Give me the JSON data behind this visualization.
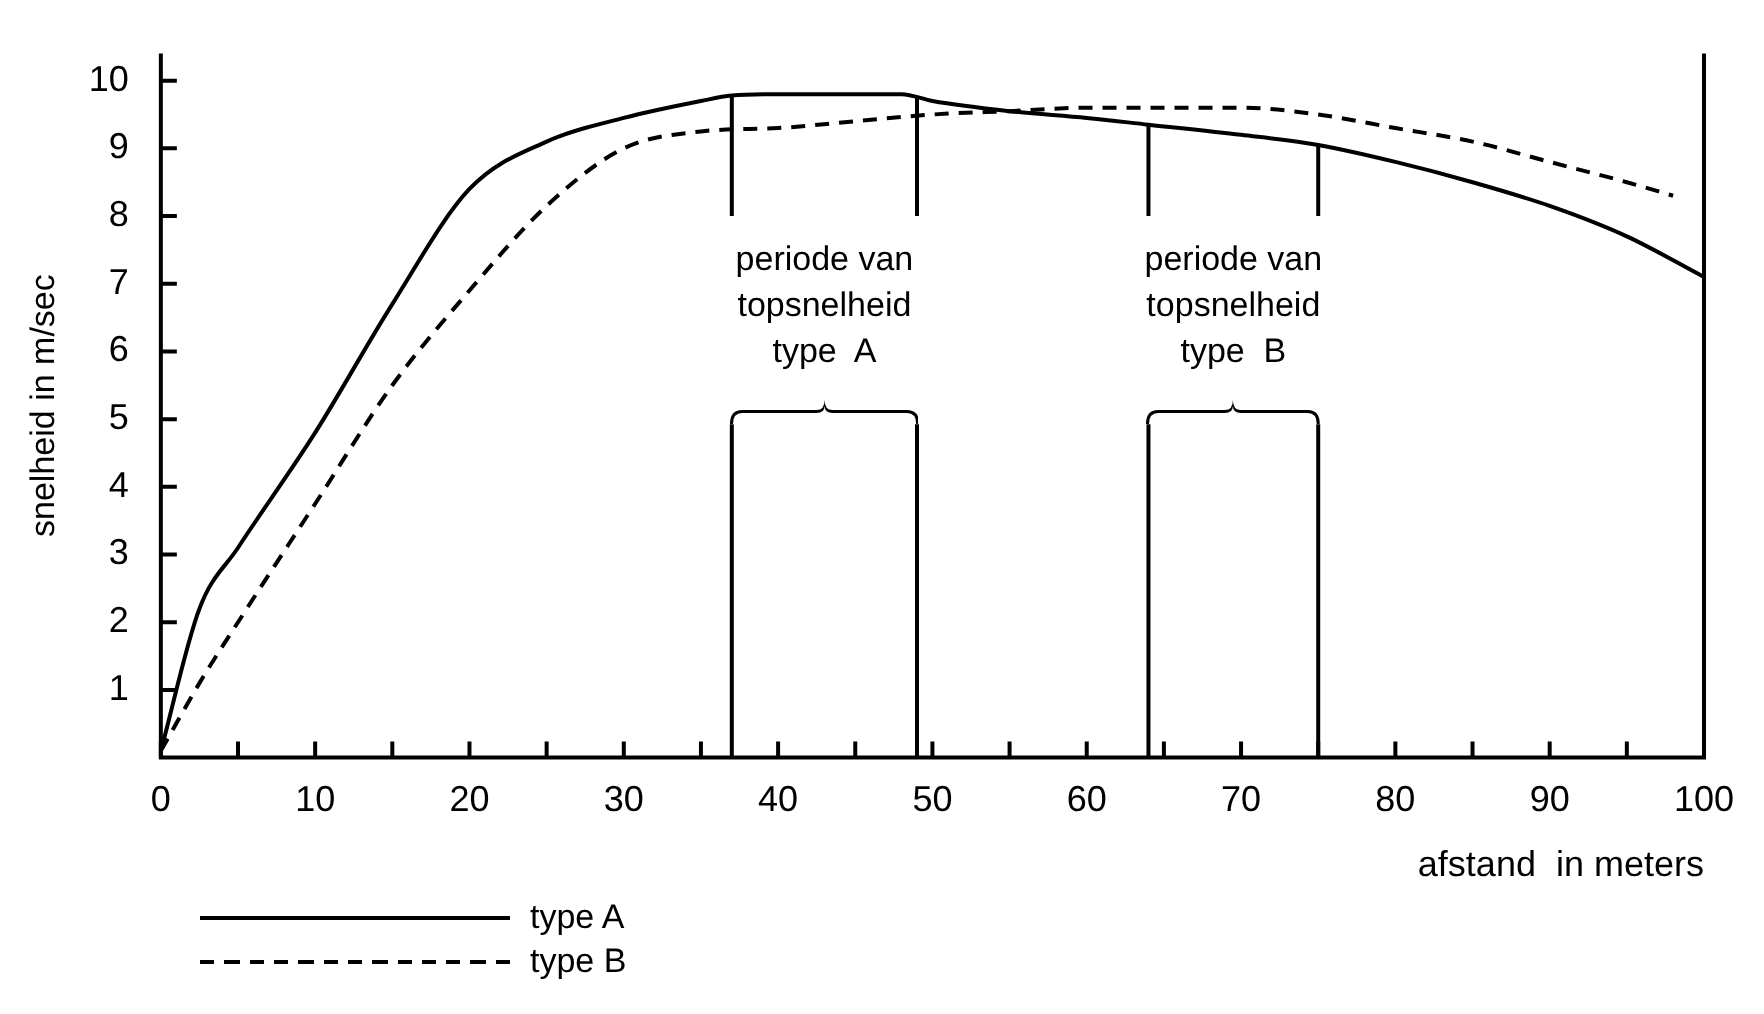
{
  "chart_data": {
    "type": "line",
    "xlabel": "afstand  in meters",
    "ylabel": "snelheid in m/sec",
    "xlim": [
      0,
      100
    ],
    "ylim": [
      0,
      10.4
    ],
    "xticks": [
      0,
      {
        "value": 5,
        "label": null
      },
      10,
      {
        "value": 15,
        "label": null
      },
      20,
      {
        "value": 25,
        "label": null
      },
      30,
      {
        "value": 35,
        "label": null
      },
      40,
      {
        "value": 45,
        "label": null
      },
      50,
      {
        "value": 55,
        "label": null
      },
      60,
      {
        "value": 65,
        "label": null
      },
      70,
      {
        "value": 75,
        "label": null
      },
      80,
      {
        "value": 85,
        "label": null
      },
      90,
      {
        "value": 95,
        "label": null
      },
      100
    ],
    "yticks": [
      1,
      2,
      3,
      4,
      5,
      6,
      7,
      8,
      9,
      10
    ],
    "grid": false,
    "legend": "bottom left",
    "marker": "none",
    "series": [
      {
        "name": "type A",
        "color": "#000000",
        "line_style": "solid",
        "x": [
          0,
          2.5,
          5,
          10,
          15,
          20,
          25,
          30,
          35,
          37,
          40,
          45,
          48,
          50,
          55,
          60,
          64,
          70,
          75,
          80,
          85,
          90,
          95,
          100
        ],
        "values": [
          0.1,
          2.2,
          3.1,
          4.8,
          6.7,
          8.4,
          9.1,
          9.45,
          9.7,
          9.78,
          9.8,
          9.8,
          9.8,
          9.7,
          9.55,
          9.45,
          9.35,
          9.2,
          9.05,
          8.8,
          8.5,
          8.15,
          7.7,
          7.1
        ]
      },
      {
        "name": "type B",
        "color": "#000000",
        "line_style": "dashed",
        "x": [
          0,
          2.5,
          5,
          10,
          15,
          20,
          25,
          30,
          35,
          40,
          45,
          50,
          55,
          60,
          64,
          70,
          75,
          80,
          85,
          90,
          95,
          98
        ],
        "values": [
          0.1,
          1.1,
          2.0,
          3.75,
          5.5,
          6.9,
          8.15,
          9.0,
          9.25,
          9.3,
          9.4,
          9.5,
          9.55,
          9.6,
          9.6,
          9.6,
          9.5,
          9.3,
          9.1,
          8.8,
          8.5,
          8.3
        ]
      }
    ],
    "ref_lines": [
      {
        "axis": "x",
        "value": 37,
        "color": "#000000"
      },
      {
        "axis": "x",
        "value": 49,
        "color": "#000000"
      },
      {
        "axis": "x",
        "value": 64,
        "color": "#000000"
      },
      {
        "axis": "x",
        "value": 75,
        "color": "#000000"
      }
    ],
    "annotations": [
      "periode van\ntopsnelheid\ntype  A",
      "periode van\ntopsnelheid\ntype  B"
    ]
  }
}
